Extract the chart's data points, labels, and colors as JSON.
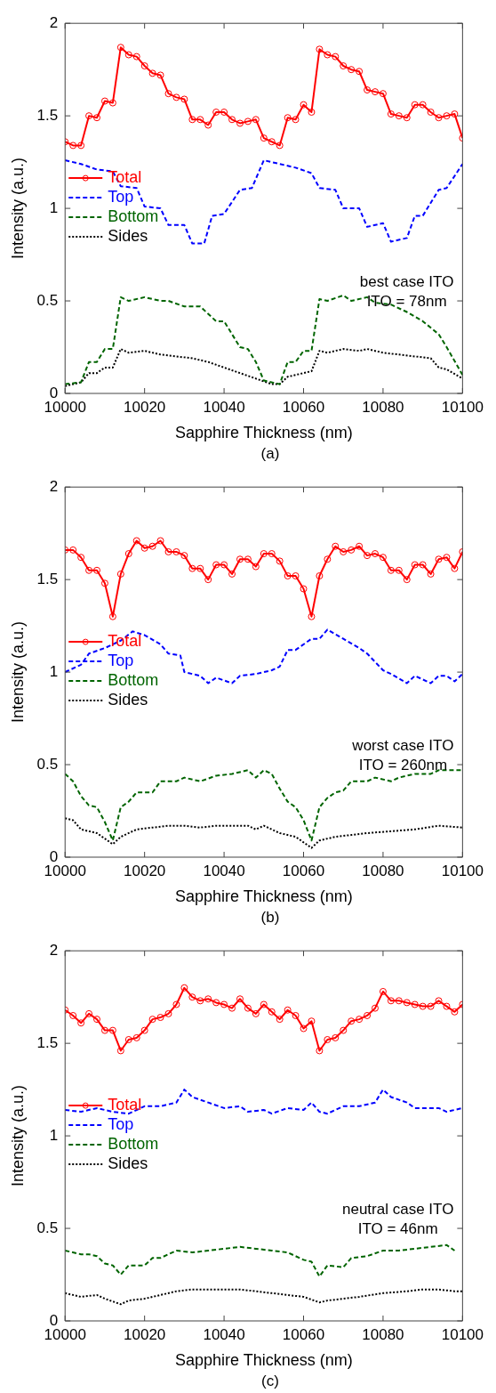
{
  "chart_data": [
    {
      "type": "line",
      "xlabel": "Sapphire Thickness (nm)",
      "ylabel": "Intensity (a.u.)",
      "xlim": [
        10000,
        10100
      ],
      "xticks": [
        10000,
        10020,
        10040,
        10060,
        10080,
        10100
      ],
      "ylim": [
        0,
        2
      ],
      "yticks": [
        0,
        0.5,
        1,
        1.5,
        2
      ],
      "grid": false,
      "legend": "left",
      "annotations": [
        "best case ITO\nITO = 78nm",
        "(a)"
      ],
      "series": [
        {
          "name": "Total",
          "color": "#ff0000",
          "marker": "circle",
          "line_style": "solid",
          "x": [
            10000,
            10002,
            10004,
            10006,
            10008,
            10010,
            10012,
            10014,
            10016,
            10018,
            10020,
            10022,
            10024,
            10026,
            10028,
            10030,
            10032,
            10034,
            10036,
            10038,
            10040,
            10042,
            10044,
            10046,
            10048,
            10050,
            10052,
            10054,
            10056,
            10058,
            10060,
            10062,
            10064,
            10066,
            10068,
            10070,
            10072,
            10074,
            10076,
            10078,
            10080,
            10082,
            10084,
            10086,
            10088,
            10090,
            10092,
            10094,
            10096,
            10098,
            10100
          ],
          "values": [
            1.36,
            1.34,
            1.34,
            1.5,
            1.49,
            1.58,
            1.57,
            1.87,
            1.83,
            1.82,
            1.77,
            1.73,
            1.72,
            1.62,
            1.6,
            1.59,
            1.48,
            1.48,
            1.45,
            1.52,
            1.52,
            1.48,
            1.46,
            1.47,
            1.48,
            1.38,
            1.36,
            1.34,
            1.49,
            1.48,
            1.56,
            1.52,
            1.86,
            1.83,
            1.82,
            1.77,
            1.75,
            1.74,
            1.64,
            1.63,
            1.62,
            1.51,
            1.5,
            1.49,
            1.56,
            1.56,
            1.52,
            1.49,
            1.5,
            1.51,
            1.38
          ]
        },
        {
          "name": "Top",
          "color": "#0000ff",
          "marker": "none",
          "line_style": "dashed",
          "x": [
            10000,
            10004,
            10008,
            10012,
            10014,
            10018,
            10020,
            10024,
            10026,
            10030,
            10032,
            10035,
            10037,
            10040,
            10044,
            10047,
            10050,
            10054,
            10058,
            10062,
            10064,
            10068,
            10070,
            10074,
            10076,
            10080,
            10082,
            10086,
            10088,
            10090,
            10094,
            10096,
            10100
          ],
          "values": [
            1.26,
            1.24,
            1.21,
            1.2,
            1.12,
            1.11,
            1.01,
            1.0,
            0.91,
            0.91,
            0.81,
            0.81,
            0.96,
            0.97,
            1.1,
            1.11,
            1.26,
            1.24,
            1.22,
            1.19,
            1.11,
            1.1,
            1.0,
            1.0,
            0.9,
            0.92,
            0.82,
            0.84,
            0.96,
            0.96,
            1.1,
            1.11,
            1.24
          ]
        },
        {
          "name": "Bottom",
          "color": "#006400",
          "marker": "none",
          "line_style": "dashed",
          "x": [
            10000,
            10004,
            10006,
            10008,
            10010,
            10012,
            10014,
            10016,
            10020,
            10024,
            10026,
            10030,
            10034,
            10038,
            10040,
            10042,
            10044,
            10046,
            10048,
            10050,
            10054,
            10056,
            10058,
            10060,
            10062,
            10064,
            10066,
            10070,
            10072,
            10076,
            10078,
            10082,
            10086,
            10090,
            10094,
            10096,
            10100
          ],
          "values": [
            0.05,
            0.06,
            0.17,
            0.17,
            0.24,
            0.24,
            0.52,
            0.5,
            0.52,
            0.5,
            0.5,
            0.47,
            0.47,
            0.39,
            0.39,
            0.32,
            0.25,
            0.24,
            0.17,
            0.07,
            0.05,
            0.17,
            0.17,
            0.23,
            0.23,
            0.51,
            0.5,
            0.53,
            0.5,
            0.52,
            0.49,
            0.48,
            0.44,
            0.39,
            0.32,
            0.25,
            0.1
          ]
        },
        {
          "name": "Sides",
          "color": "#000000",
          "marker": "none",
          "line_style": "dotted",
          "x": [
            10000,
            10004,
            10006,
            10008,
            10010,
            10012,
            10014,
            10016,
            10020,
            10024,
            10028,
            10032,
            10036,
            10040,
            10044,
            10048,
            10052,
            10054,
            10056,
            10060,
            10062,
            10064,
            10066,
            10070,
            10074,
            10076,
            10080,
            10084,
            10088,
            10092,
            10094,
            10096,
            10100
          ],
          "values": [
            0.04,
            0.06,
            0.11,
            0.11,
            0.14,
            0.14,
            0.24,
            0.22,
            0.23,
            0.21,
            0.2,
            0.19,
            0.17,
            0.14,
            0.11,
            0.08,
            0.05,
            0.05,
            0.09,
            0.11,
            0.12,
            0.23,
            0.22,
            0.24,
            0.23,
            0.24,
            0.22,
            0.21,
            0.2,
            0.19,
            0.14,
            0.13,
            0.08
          ]
        }
      ]
    },
    {
      "type": "line",
      "xlabel": "Sapphire Thickness (nm)",
      "ylabel": "Intensity (a.u.)",
      "xlim": [
        10000,
        10100
      ],
      "xticks": [
        10000,
        10020,
        10040,
        10060,
        10080,
        10100
      ],
      "ylim": [
        0,
        2
      ],
      "yticks": [
        0,
        0.5,
        1,
        1.5,
        2
      ],
      "grid": false,
      "legend": "left",
      "annotations": [
        "worst case ITO\nITO = 260nm",
        "(b)"
      ],
      "series": [
        {
          "name": "Total",
          "color": "#ff0000",
          "marker": "circle",
          "line_style": "solid",
          "x": [
            10000,
            10002,
            10004,
            10006,
            10008,
            10010,
            10012,
            10014,
            10016,
            10018,
            10020,
            10022,
            10024,
            10026,
            10028,
            10030,
            10032,
            10034,
            10036,
            10038,
            10040,
            10042,
            10044,
            10046,
            10048,
            10050,
            10052,
            10054,
            10056,
            10058,
            10060,
            10062,
            10064,
            10066,
            10068,
            10070,
            10072,
            10074,
            10076,
            10078,
            10080,
            10082,
            10084,
            10086,
            10088,
            10090,
            10092,
            10094,
            10096,
            10098,
            10100
          ],
          "values": [
            1.66,
            1.66,
            1.62,
            1.55,
            1.55,
            1.48,
            1.3,
            1.53,
            1.64,
            1.71,
            1.67,
            1.68,
            1.71,
            1.65,
            1.65,
            1.63,
            1.56,
            1.56,
            1.5,
            1.58,
            1.58,
            1.53,
            1.61,
            1.61,
            1.57,
            1.64,
            1.64,
            1.6,
            1.52,
            1.52,
            1.45,
            1.3,
            1.52,
            1.61,
            1.68,
            1.65,
            1.66,
            1.68,
            1.63,
            1.64,
            1.62,
            1.55,
            1.55,
            1.5,
            1.58,
            1.58,
            1.53,
            1.61,
            1.62,
            1.56,
            1.65
          ]
        },
        {
          "name": "Top",
          "color": "#0000ff",
          "marker": "none",
          "line_style": "dashed",
          "x": [
            10000,
            10004,
            10006,
            10010,
            10014,
            10017,
            10020,
            10024,
            10026,
            10029,
            10030,
            10034,
            10036,
            10038,
            10042,
            10044,
            10048,
            10052,
            10054,
            10056,
            10058,
            10062,
            10064,
            10066,
            10070,
            10074,
            10076,
            10080,
            10082,
            10086,
            10088,
            10092,
            10094,
            10096,
            10098,
            10100
          ],
          "values": [
            1.0,
            1.04,
            1.1,
            1.13,
            1.17,
            1.22,
            1.2,
            1.15,
            1.1,
            1.09,
            1.0,
            0.98,
            0.94,
            0.97,
            0.94,
            0.98,
            0.99,
            1.01,
            1.03,
            1.12,
            1.12,
            1.18,
            1.18,
            1.23,
            1.18,
            1.13,
            1.1,
            1.01,
            0.99,
            0.94,
            0.98,
            0.94,
            0.98,
            0.98,
            0.95,
            0.99
          ]
        },
        {
          "name": "Bottom",
          "color": "#006400",
          "marker": "none",
          "line_style": "dashed",
          "x": [
            10000,
            10002,
            10004,
            10006,
            10008,
            10010,
            10012,
            10014,
            10016,
            10018,
            10022,
            10024,
            10028,
            10030,
            10034,
            10038,
            10042,
            10046,
            10048,
            10050,
            10052,
            10054,
            10056,
            10058,
            10060,
            10062,
            10064,
            10066,
            10068,
            10070,
            10072,
            10076,
            10078,
            10082,
            10084,
            10088,
            10092,
            10094,
            10098,
            10100
          ],
          "values": [
            0.45,
            0.41,
            0.33,
            0.28,
            0.27,
            0.19,
            0.09,
            0.27,
            0.3,
            0.35,
            0.35,
            0.41,
            0.41,
            0.43,
            0.41,
            0.44,
            0.45,
            0.47,
            0.43,
            0.47,
            0.45,
            0.37,
            0.3,
            0.27,
            0.2,
            0.09,
            0.27,
            0.32,
            0.35,
            0.36,
            0.41,
            0.41,
            0.43,
            0.41,
            0.43,
            0.45,
            0.45,
            0.47,
            0.47,
            0.47
          ]
        },
        {
          "name": "Sides",
          "color": "#000000",
          "marker": "none",
          "line_style": "dotted",
          "x": [
            10000,
            10002,
            10004,
            10008,
            10012,
            10014,
            10018,
            10022,
            10026,
            10030,
            10034,
            10038,
            10042,
            10046,
            10048,
            10050,
            10054,
            10058,
            10062,
            10064,
            10068,
            10072,
            10076,
            10082,
            10088,
            10094,
            10100
          ],
          "values": [
            0.21,
            0.2,
            0.15,
            0.13,
            0.07,
            0.11,
            0.15,
            0.16,
            0.17,
            0.17,
            0.16,
            0.17,
            0.17,
            0.17,
            0.15,
            0.17,
            0.13,
            0.11,
            0.05,
            0.09,
            0.11,
            0.12,
            0.13,
            0.14,
            0.15,
            0.17,
            0.16
          ]
        }
      ]
    },
    {
      "type": "line",
      "xlabel": "Sapphire Thickness (nm)",
      "ylabel": "Intensity (a.u.)",
      "xlim": [
        10000,
        10100
      ],
      "xticks": [
        10000,
        10020,
        10040,
        10060,
        10080,
        10100
      ],
      "ylim": [
        0,
        2
      ],
      "yticks": [
        0,
        0.5,
        1,
        1.5,
        2
      ],
      "grid": false,
      "legend": "left",
      "annotations": [
        "neutral case ITO\nITO = 46nm",
        "(c)"
      ],
      "series": [
        {
          "name": "Total",
          "color": "#ff0000",
          "marker": "circle",
          "line_style": "solid",
          "x": [
            10000,
            10002,
            10004,
            10006,
            10008,
            10010,
            10012,
            10014,
            10016,
            10018,
            10020,
            10022,
            10024,
            10026,
            10028,
            10030,
            10032,
            10034,
            10036,
            10038,
            10040,
            10042,
            10044,
            10046,
            10048,
            10050,
            10052,
            10054,
            10056,
            10058,
            10060,
            10062,
            10064,
            10066,
            10068,
            10070,
            10072,
            10074,
            10076,
            10078,
            10080,
            10082,
            10084,
            10086,
            10088,
            10090,
            10092,
            10094,
            10096,
            10098,
            10100
          ],
          "values": [
            1.68,
            1.65,
            1.61,
            1.66,
            1.63,
            1.57,
            1.57,
            1.46,
            1.52,
            1.53,
            1.57,
            1.63,
            1.64,
            1.66,
            1.71,
            1.8,
            1.75,
            1.73,
            1.74,
            1.72,
            1.71,
            1.69,
            1.74,
            1.69,
            1.66,
            1.71,
            1.67,
            1.63,
            1.68,
            1.65,
            1.58,
            1.62,
            1.46,
            1.52,
            1.53,
            1.57,
            1.62,
            1.63,
            1.65,
            1.69,
            1.78,
            1.73,
            1.73,
            1.72,
            1.71,
            1.7,
            1.7,
            1.73,
            1.7,
            1.67,
            1.71
          ]
        },
        {
          "name": "Top",
          "color": "#0000ff",
          "marker": "none",
          "line_style": "dashed",
          "x": [
            10000,
            10004,
            10008,
            10012,
            10016,
            10020,
            10024,
            10028,
            10030,
            10032,
            10036,
            10040,
            10044,
            10046,
            10050,
            10052,
            10056,
            10060,
            10062,
            10064,
            10066,
            10070,
            10074,
            10078,
            10080,
            10082,
            10086,
            10088,
            10092,
            10094,
            10096,
            10100
          ],
          "values": [
            1.14,
            1.13,
            1.15,
            1.13,
            1.12,
            1.16,
            1.16,
            1.18,
            1.25,
            1.21,
            1.18,
            1.15,
            1.16,
            1.13,
            1.14,
            1.12,
            1.15,
            1.14,
            1.18,
            1.13,
            1.12,
            1.16,
            1.16,
            1.18,
            1.25,
            1.21,
            1.18,
            1.15,
            1.15,
            1.15,
            1.13,
            1.15
          ]
        },
        {
          "name": "Bottom",
          "color": "#006400",
          "marker": "none",
          "line_style": "dashed",
          "x": [
            10000,
            10004,
            10006,
            10008,
            10010,
            10012,
            10014,
            10016,
            10018,
            10020,
            10022,
            10024,
            10026,
            10028,
            10032,
            10036,
            10040,
            10044,
            10048,
            10052,
            10056,
            10060,
            10062,
            10064,
            10066,
            10070,
            10072,
            10076,
            10080,
            10084,
            10088,
            10092,
            10096,
            10098
          ],
          "values": [
            0.38,
            0.36,
            0.36,
            0.35,
            0.31,
            0.3,
            0.25,
            0.3,
            0.3,
            0.3,
            0.34,
            0.34,
            0.36,
            0.38,
            0.37,
            0.38,
            0.39,
            0.4,
            0.39,
            0.38,
            0.37,
            0.33,
            0.32,
            0.24,
            0.3,
            0.29,
            0.34,
            0.35,
            0.38,
            0.38,
            0.39,
            0.4,
            0.41,
            0.38
          ]
        },
        {
          "name": "Sides",
          "color": "#000000",
          "marker": "none",
          "line_style": "dotted",
          "x": [
            10000,
            10004,
            10008,
            10010,
            10014,
            10016,
            10020,
            10024,
            10028,
            10032,
            10036,
            10040,
            10044,
            10048,
            10052,
            10056,
            10060,
            10064,
            10066,
            10070,
            10074,
            10080,
            10086,
            10090,
            10094,
            10098,
            10100
          ],
          "values": [
            0.15,
            0.13,
            0.14,
            0.12,
            0.09,
            0.11,
            0.12,
            0.14,
            0.16,
            0.17,
            0.17,
            0.17,
            0.17,
            0.16,
            0.15,
            0.14,
            0.13,
            0.1,
            0.11,
            0.12,
            0.13,
            0.15,
            0.16,
            0.17,
            0.17,
            0.16,
            0.16
          ]
        }
      ]
    }
  ]
}
